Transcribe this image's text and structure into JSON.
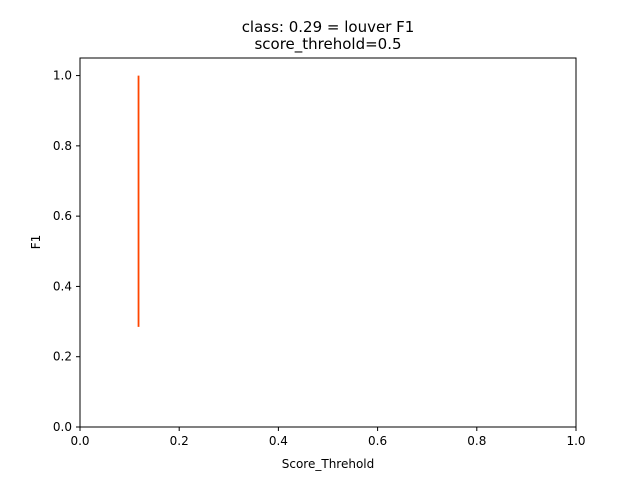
{
  "chart_data": {
    "type": "line",
    "title_lines": [
      "class: 0.29 = louver F1",
      "score_threhold=0.5"
    ],
    "xlabel": "Score_Threhold",
    "ylabel": "F1",
    "xlim": [
      0.0,
      1.0
    ],
    "ylim": [
      0.0,
      1.05
    ],
    "x_ticks": [
      0.0,
      0.2,
      0.4,
      0.6,
      0.8,
      1.0
    ],
    "x_tick_labels": [
      "0.0",
      "0.2",
      "0.4",
      "0.6",
      "0.8",
      "1.0"
    ],
    "y_ticks": [
      0.0,
      0.2,
      0.4,
      0.6,
      0.8,
      1.0
    ],
    "y_tick_labels": [
      "0.0",
      "0.2",
      "0.4",
      "0.6",
      "0.8",
      "1.0"
    ],
    "grid": false,
    "series": [
      {
        "color": "#ff4500",
        "x": [
          0.118,
          0.118
        ],
        "y": [
          0.285,
          1.0
        ]
      }
    ]
  }
}
